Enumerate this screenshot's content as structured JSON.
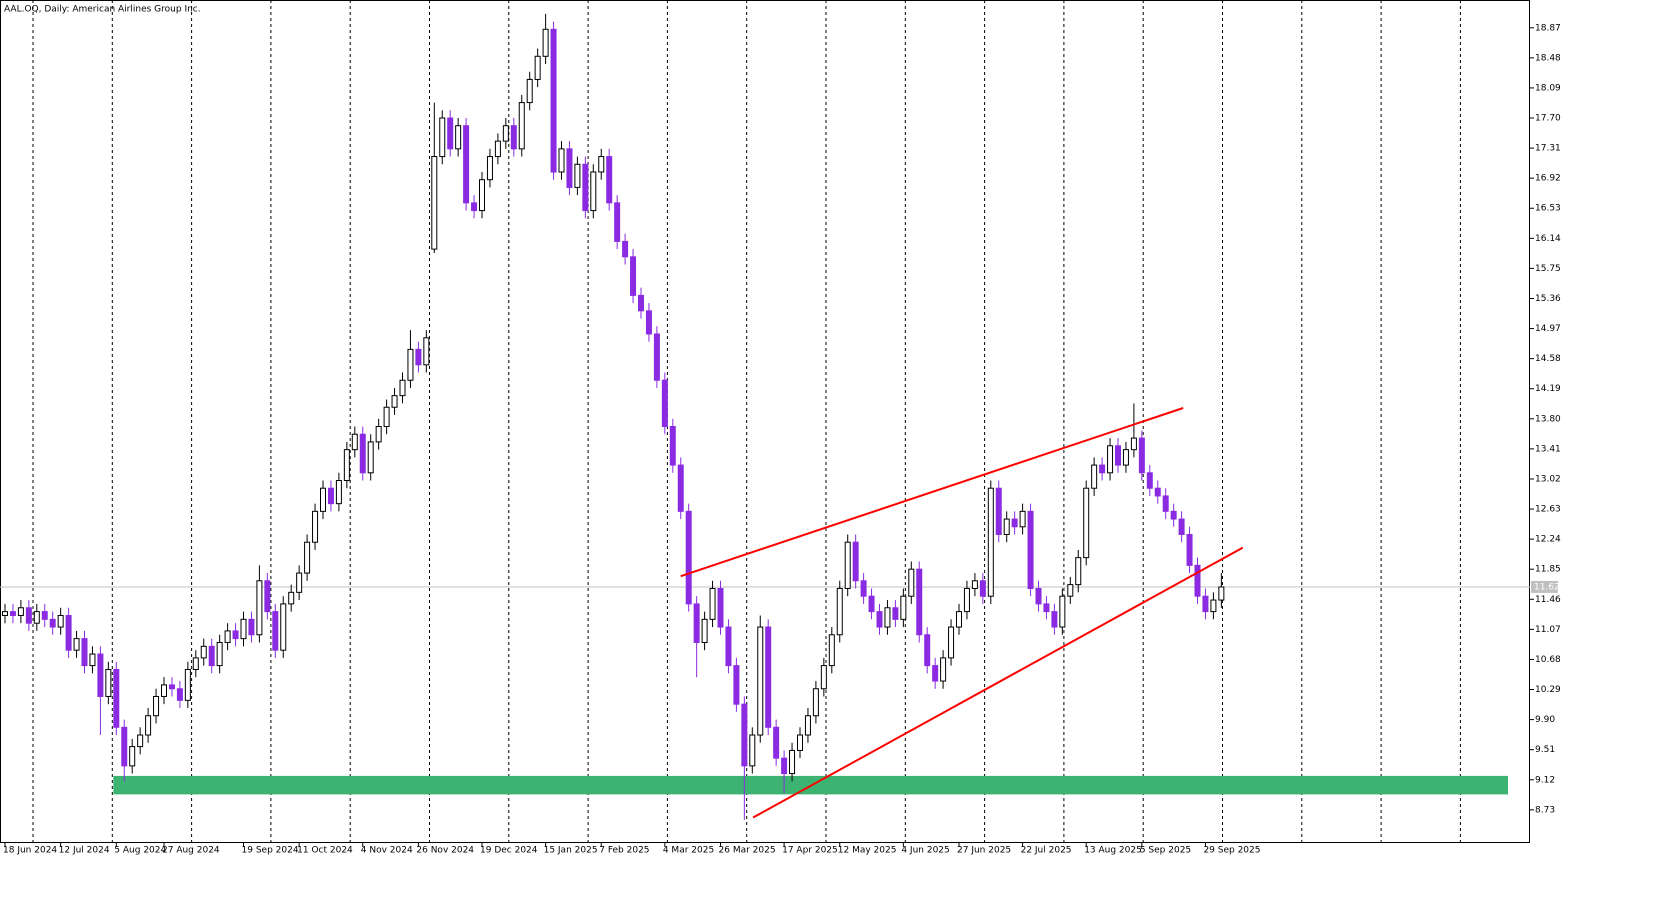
{
  "chart_data": {
    "type": "candlestick",
    "title": "AAL.OQ, Daily:  American Airlines Group Inc.",
    "categories": [
      "18 Jun 2024",
      null,
      null,
      null,
      null,
      null,
      null,
      "12 Jul 2024",
      null,
      null,
      null,
      null,
      null,
      null,
      "5 Aug 2024",
      null,
      null,
      null,
      null,
      null,
      "27 Aug 2024",
      null,
      null,
      null,
      null,
      null,
      null,
      null,
      null,
      null,
      "19 Sep 2024",
      null,
      null,
      null,
      null,
      null,
      null,
      "11 Oct 2024",
      null,
      null,
      null,
      null,
      null,
      null,
      null,
      "4 Nov 2024",
      null,
      null,
      null,
      null,
      null,
      null,
      "26 Nov 2024",
      null,
      null,
      null,
      null,
      null,
      null,
      null,
      "19 Dec 2024",
      null,
      null,
      null,
      null,
      null,
      null,
      null,
      "15 Jan 2025",
      null,
      null,
      null,
      null,
      null,
      null,
      "7 Feb 2025",
      null,
      null,
      null,
      null,
      null,
      null,
      null,
      "4 Mar 2025",
      null,
      null,
      null,
      null,
      null,
      null,
      "26 Mar 2025",
      null,
      null,
      null,
      null,
      null,
      null,
      null,
      "17 Apr 2025",
      null,
      null,
      null,
      null,
      null,
      null,
      "12 May 2025",
      null,
      null,
      null,
      null,
      null,
      null,
      null,
      "4 Jun 2025",
      null,
      null,
      null,
      null,
      null,
      null,
      "27 Jun 2025",
      null,
      null,
      null,
      null,
      null,
      null,
      null,
      "22 Jul 2025",
      null,
      null,
      null,
      null,
      null,
      null,
      null,
      "13 Aug 2025",
      null,
      null,
      null,
      null,
      null,
      null,
      "5 Sep 2025",
      null,
      null,
      null,
      null,
      null,
      null,
      null,
      "29 Sep 2025",
      null,
      null
    ],
    "open": [
      11.25,
      11.3,
      11.25,
      11.35,
      11.15,
      11.3,
      11.2,
      11.1,
      11.25,
      10.8,
      10.95,
      10.6,
      10.75,
      10.2,
      10.55,
      9.8,
      9.3,
      9.55,
      9.7,
      9.95,
      10.2,
      10.35,
      10.3,
      10.15,
      10.55,
      10.7,
      10.85,
      10.6,
      10.9,
      11.05,
      10.95,
      11.2,
      11.0,
      11.7,
      11.3,
      10.8,
      11.4,
      11.55,
      11.8,
      12.2,
      12.6,
      12.9,
      12.7,
      13.0,
      13.4,
      13.6,
      13.1,
      13.5,
      13.7,
      13.95,
      14.1,
      14.3,
      14.7,
      14.5,
      16.0,
      17.2,
      17.7,
      17.3,
      17.6,
      16.6,
      16.5,
      16.9,
      17.2,
      17.4,
      17.6,
      17.3,
      17.9,
      18.2,
      18.5,
      18.85,
      17.0,
      17.3,
      16.8,
      17.1,
      16.5,
      17.0,
      17.2,
      16.6,
      16.1,
      15.9,
      15.4,
      15.2,
      14.9,
      14.3,
      13.7,
      13.2,
      12.6,
      11.4,
      10.9,
      11.2,
      11.6,
      11.1,
      10.6,
      10.1,
      9.3,
      9.7,
      11.1,
      9.8,
      9.4,
      9.2,
      9.5,
      9.7,
      9.95,
      10.3,
      10.6,
      11.0,
      11.6,
      12.2,
      11.7,
      11.5,
      11.3,
      11.1,
      11.35,
      11.2,
      11.5,
      11.85,
      11.0,
      10.6,
      10.4,
      10.7,
      11.1,
      11.3,
      11.6,
      11.7,
      11.5,
      12.9,
      12.3,
      12.5,
      12.4,
      12.6,
      11.6,
      11.4,
      11.3,
      11.1,
      11.5,
      11.65,
      12.0,
      12.9,
      13.2,
      13.1,
      13.45,
      13.2,
      13.4,
      13.55,
      13.1,
      12.9,
      12.8,
      12.6,
      12.5,
      12.3,
      11.9,
      11.5,
      11.3,
      11.45
    ],
    "high": [
      11.4,
      11.4,
      11.45,
      11.45,
      11.4,
      11.4,
      11.3,
      11.35,
      11.35,
      11.05,
      11.05,
      10.85,
      10.85,
      10.65,
      10.65,
      9.9,
      9.65,
      9.8,
      10.05,
      10.3,
      10.45,
      10.45,
      10.4,
      10.65,
      10.8,
      10.95,
      10.95,
      11.0,
      11.15,
      11.15,
      11.3,
      11.3,
      11.9,
      11.8,
      11.4,
      11.5,
      11.65,
      11.9,
      12.3,
      12.7,
      13.0,
      13.0,
      13.1,
      13.5,
      13.7,
      13.7,
      13.6,
      13.8,
      14.05,
      14.2,
      14.4,
      14.95,
      14.8,
      14.95,
      17.9,
      17.8,
      17.8,
      17.7,
      17.7,
      16.7,
      17.0,
      17.3,
      17.5,
      17.7,
      17.7,
      18.0,
      18.3,
      18.6,
      19.05,
      18.95,
      17.4,
      17.4,
      17.2,
      17.2,
      17.1,
      17.3,
      17.3,
      16.7,
      16.2,
      16.0,
      15.5,
      15.3,
      15.0,
      14.4,
      13.8,
      13.3,
      12.7,
      11.5,
      11.3,
      11.7,
      11.7,
      11.2,
      10.7,
      10.2,
      9.8,
      11.25,
      11.2,
      9.9,
      9.5,
      9.6,
      9.8,
      10.05,
      10.4,
      10.7,
      11.1,
      11.7,
      12.3,
      12.3,
      11.8,
      11.6,
      11.4,
      11.45,
      11.45,
      11.6,
      11.95,
      11.95,
      11.1,
      10.7,
      10.8,
      11.2,
      11.4,
      11.7,
      11.8,
      11.8,
      13.0,
      13.0,
      12.6,
      12.6,
      12.7,
      12.7,
      11.7,
      11.5,
      11.4,
      11.6,
      11.75,
      12.1,
      13.0,
      13.3,
      13.3,
      13.55,
      13.55,
      13.5,
      14.0,
      13.65,
      13.2,
      13.0,
      12.9,
      12.7,
      12.6,
      12.4,
      12.0,
      11.6,
      11.55,
      11.8
    ],
    "low": [
      11.15,
      11.15,
      11.15,
      11.05,
      11.05,
      11.1,
      11.0,
      11.0,
      10.7,
      10.7,
      10.5,
      10.5,
      9.7,
      10.1,
      9.7,
      9.1,
      9.2,
      9.45,
      9.6,
      9.85,
      10.1,
      10.2,
      10.05,
      10.05,
      10.45,
      10.6,
      10.5,
      10.5,
      10.8,
      10.85,
      10.85,
      10.9,
      10.9,
      11.2,
      10.7,
      10.7,
      11.3,
      11.45,
      11.7,
      12.1,
      12.5,
      12.6,
      12.6,
      12.9,
      13.3,
      13.0,
      13.0,
      13.4,
      13.6,
      13.85,
      14.0,
      14.2,
      14.4,
      14.4,
      15.95,
      17.1,
      17.2,
      17.2,
      16.5,
      16.4,
      16.4,
      16.8,
      17.1,
      17.3,
      17.2,
      17.2,
      17.8,
      18.1,
      18.4,
      16.9,
      16.9,
      16.7,
      16.7,
      16.4,
      16.4,
      16.9,
      16.5,
      16.0,
      15.8,
      15.3,
      15.1,
      14.8,
      14.2,
      13.6,
      13.1,
      12.5,
      11.3,
      10.45,
      10.8,
      11.1,
      11.0,
      10.5,
      10.0,
      8.6,
      9.2,
      9.6,
      9.7,
      9.3,
      8.95,
      9.1,
      9.4,
      9.6,
      9.85,
      10.2,
      10.5,
      10.9,
      11.5,
      11.6,
      11.4,
      11.2,
      11.0,
      11.0,
      11.1,
      11.1,
      11.4,
      10.9,
      10.5,
      10.3,
      10.3,
      10.6,
      11.0,
      11.2,
      11.5,
      11.4,
      11.4,
      12.2,
      12.2,
      12.3,
      12.3,
      11.5,
      11.3,
      11.2,
      11.0,
      11.0,
      11.4,
      11.55,
      11.9,
      12.8,
      13.0,
      13.0,
      13.1,
      13.1,
      13.3,
      13.0,
      12.8,
      12.7,
      12.5,
      12.4,
      12.2,
      11.8,
      11.4,
      11.2,
      11.2,
      11.35
    ],
    "close": [
      11.3,
      11.25,
      11.35,
      11.15,
      11.3,
      11.2,
      11.1,
      11.25,
      10.8,
      10.95,
      10.6,
      10.75,
      10.2,
      10.55,
      9.8,
      9.3,
      9.55,
      9.7,
      9.95,
      10.2,
      10.35,
      10.3,
      10.15,
      10.55,
      10.7,
      10.85,
      10.6,
      10.9,
      11.05,
      10.95,
      11.2,
      11.0,
      11.7,
      11.3,
      10.8,
      11.4,
      11.55,
      11.8,
      12.2,
      12.6,
      12.9,
      12.7,
      13.0,
      13.4,
      13.6,
      13.1,
      13.5,
      13.7,
      13.95,
      14.1,
      14.3,
      14.7,
      14.5,
      14.85,
      17.2,
      17.7,
      17.3,
      17.6,
      16.6,
      16.5,
      16.9,
      17.2,
      17.4,
      17.6,
      17.3,
      17.9,
      18.2,
      18.5,
      18.85,
      17.0,
      17.3,
      16.8,
      17.1,
      16.5,
      17.0,
      17.2,
      16.6,
      16.1,
      15.9,
      15.4,
      15.2,
      14.9,
      14.3,
      13.7,
      13.2,
      12.6,
      11.4,
      10.9,
      11.2,
      11.6,
      11.1,
      10.6,
      10.1,
      9.3,
      9.7,
      11.1,
      9.8,
      9.4,
      9.2,
      9.5,
      9.7,
      9.95,
      10.3,
      10.6,
      11.0,
      11.6,
      12.2,
      11.7,
      11.5,
      11.3,
      11.1,
      11.35,
      11.2,
      11.5,
      11.85,
      11.0,
      10.6,
      10.4,
      10.7,
      11.1,
      11.3,
      11.6,
      11.7,
      11.5,
      12.9,
      12.3,
      12.5,
      12.4,
      12.6,
      11.6,
      11.4,
      11.3,
      11.1,
      11.5,
      11.65,
      12.0,
      12.9,
      13.2,
      13.1,
      13.45,
      13.2,
      13.4,
      13.55,
      13.1,
      12.9,
      12.8,
      12.6,
      12.5,
      12.3,
      11.9,
      11.5,
      11.3,
      11.45,
      11.62
    ],
    "up_color": "#ffffff",
    "down_color": "#8a2be2",
    "last_price": 11.62,
    "ylim": [
      8.3,
      19.23
    ],
    "yticks": [
      8.73,
      9.12,
      9.51,
      {
        "value": 9.9,
        "label": "9.90"
      },
      10.29,
      10.68,
      11.07,
      11.46,
      11.85,
      12.24,
      12.63,
      13.02,
      13.41,
      {
        "value": 13.8,
        "label": "13.80"
      },
      14.19,
      14.58,
      14.97,
      15.36,
      15.75,
      16.14,
      16.53,
      16.92,
      17.31,
      {
        "value": 17.7,
        "label": "17.70"
      },
      18.09,
      18.48,
      18.87
    ],
    "zone": {
      "start_index": 14,
      "low": 8.93,
      "high": 9.17,
      "color": "#3cb371"
    },
    "trendlines": [
      {
        "start_index": 85,
        "start_price": 11.76,
        "end_index": 148.2,
        "end_price": 13.94,
        "color": "#ff0000"
      },
      {
        "start_index": 94.1,
        "start_price": 8.63,
        "end_index": 155.7,
        "end_price": 12.13,
        "color": "#ff0000"
      }
    ]
  }
}
